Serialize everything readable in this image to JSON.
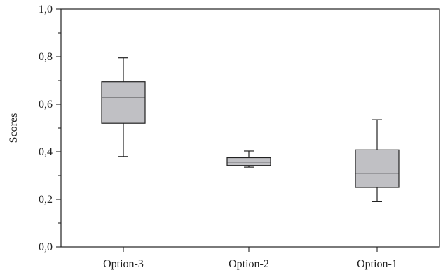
{
  "chart_data": {
    "type": "box",
    "ylabel": "Scores",
    "ylim": [
      0,
      1
    ],
    "y_ticks": [
      "0,0",
      "0,2",
      "0,4",
      "0,6",
      "0,8",
      "1,0"
    ],
    "y_tick_values": [
      0,
      0.2,
      0.4,
      0.6,
      0.8,
      1.0
    ],
    "y_minor_step": 0.1,
    "categories": [
      "Option-3",
      "Option-2",
      "Option-1"
    ],
    "boxes": [
      {
        "category": "Option-3",
        "min": 0.38,
        "q1": 0.52,
        "median": 0.63,
        "q3": 0.695,
        "max": 0.795
      },
      {
        "category": "Option-2",
        "min": 0.335,
        "q1": 0.342,
        "median": 0.357,
        "q3": 0.375,
        "max": 0.403
      },
      {
        "category": "Option-1",
        "min": 0.19,
        "q1": 0.25,
        "median": 0.31,
        "q3": 0.408,
        "max": 0.535
      }
    ],
    "box_fill": "#c0c0c4",
    "line_color": "#222222",
    "grid": false
  }
}
